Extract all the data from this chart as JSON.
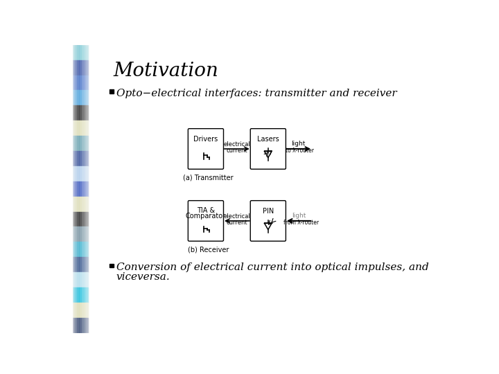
{
  "title": "Motivation",
  "bullet1": "Opto−electrical interfaces: transmitter and receiver",
  "bullet2_line1": "Conversion of electrical current into optical impulses, and",
  "bullet2_line2": "viceversa.",
  "diagram_caption_a": "(a) Transmitter",
  "diagram_caption_b": "(b) Receiver",
  "label_drivers": "Drivers",
  "label_tia_line1": "TIA &",
  "label_tia_line2": "Comparator",
  "label_lasers": "Lasers",
  "label_pin": "PIN",
  "label_elec_current": "electrical\ncurrent",
  "label_light_a": "light",
  "label_to_router": "to λ-router",
  "label_light_b": "light",
  "label_from_router": "from λ-router",
  "sidebar_colors": [
    "#70c8d5",
    "#1e3f9e",
    "#2a5ec5",
    "#3399dd",
    "#111111",
    "#ddddb0",
    "#5599aa",
    "#1a3a8f",
    "#aaccee",
    "#2244bb",
    "#ddddb0",
    "#111111",
    "#668899",
    "#22aacc",
    "#1a4080",
    "#aaddee",
    "#00bbdd",
    "#ddddb0",
    "#1a3060"
  ],
  "bg_color": "#ffffff",
  "text_color": "#000000",
  "title_fontsize": 20,
  "body_fontsize": 11,
  "diagram_fontsize": 7,
  "small_fontsize": 6
}
